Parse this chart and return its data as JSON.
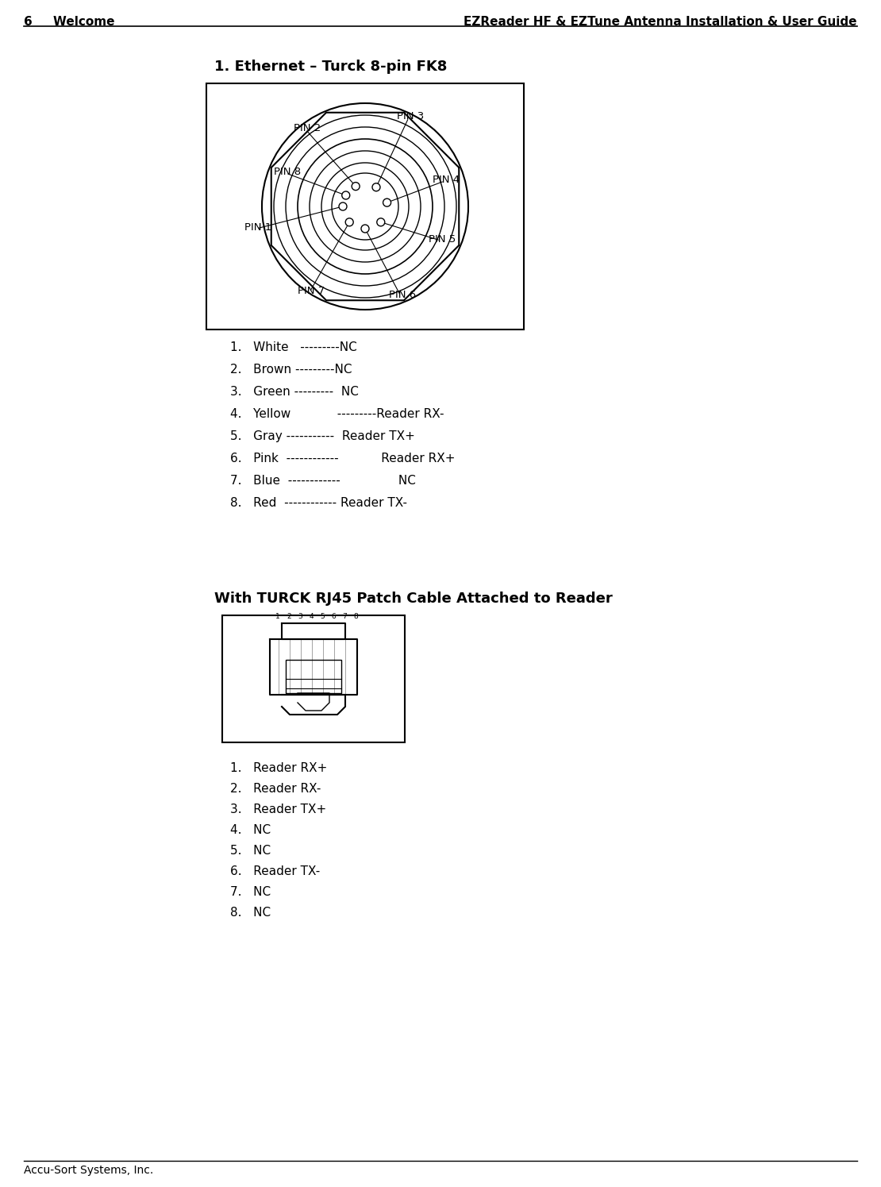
{
  "header_left": "6     Welcome",
  "header_right": "EZReader HF & EZTune Antenna Installation & User Guide",
  "footer_text": "Accu-Sort Systems, Inc.",
  "section1_title": "1. Ethernet – Turck 8-pin FK8",
  "pin_list": [
    "1.   White   ---------NC",
    "2.   Brown ---------NC",
    "3.   Green ---------  NC",
    "4.   Yellow            ---------Reader RX-",
    "5.   Gray -----------  Reader TX+",
    "6.   Pink  ------------           Reader RX+",
    "7.   Blue  ------------               NC",
    "8.   Red  ------------ Reader TX-"
  ],
  "section2_title": "With TURCK RJ45 Patch Cable Attached to Reader",
  "rj45_list": [
    "1.   Reader RX+",
    "2.   Reader RX-",
    "3.   Reader TX+",
    "4.   NC",
    "5.   NC",
    "6.   Reader TX-",
    "7.   NC",
    "8.   NC"
  ],
  "bg_color": "#ffffff",
  "text_color": "#000000",
  "header_fontsize": 11,
  "title_fontsize": 13,
  "body_fontsize": 11,
  "footer_fontsize": 10
}
